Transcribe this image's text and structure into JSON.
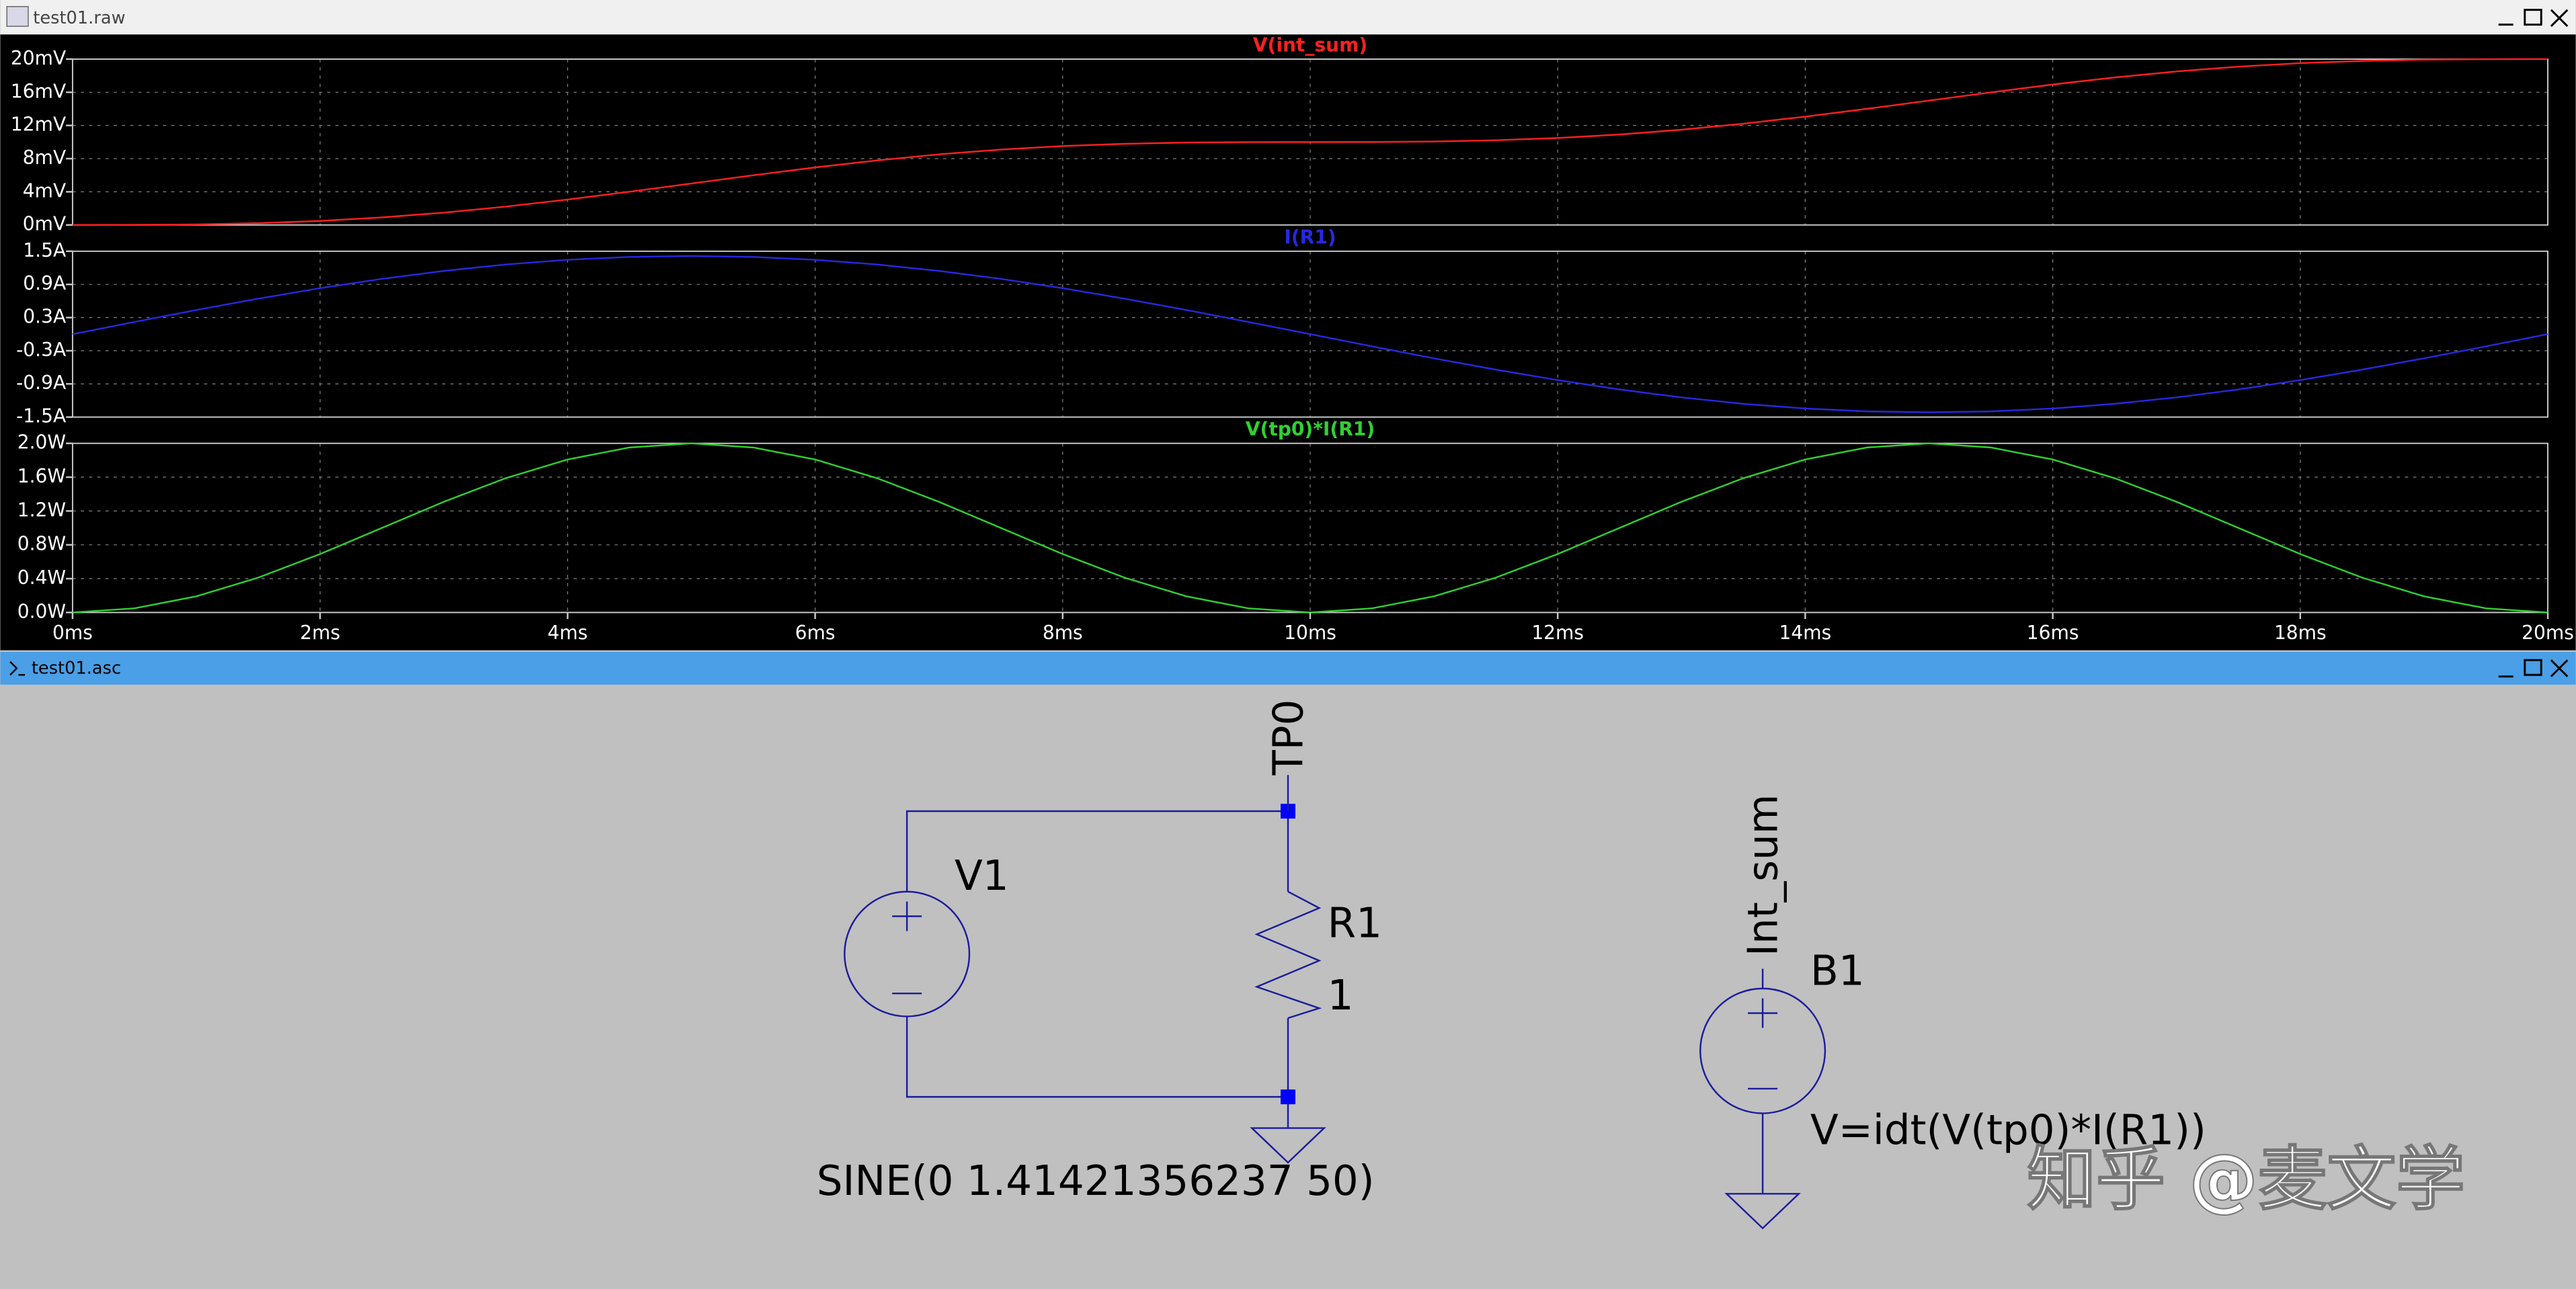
{
  "raw_window": {
    "title": "test01.raw"
  },
  "chart_data": [
    {
      "type": "line",
      "title": "V(int_sum)",
      "color": "#ff2020",
      "x": [
        0,
        0.5,
        1,
        1.5,
        2,
        2.5,
        3,
        3.5,
        4,
        4.5,
        5,
        5.5,
        6,
        6.5,
        7,
        7.5,
        8,
        8.5,
        9,
        9.5,
        10,
        10.5,
        11,
        11.5,
        12,
        12.5,
        13,
        13.5,
        14,
        14.5,
        15,
        15.5,
        16,
        16.5,
        17,
        17.5,
        18,
        18.5,
        19,
        19.5,
        20
      ],
      "values": [
        0,
        0.008,
        0.064,
        0.213,
        0.486,
        0.909,
        1.486,
        2.213,
        3.064,
        4.008,
        5,
        5.992,
        6.936,
        7.787,
        8.514,
        9.091,
        9.514,
        9.787,
        9.936,
        9.992,
        10,
        10.008,
        10.064,
        10.213,
        10.486,
        10.909,
        11.486,
        12.213,
        13.064,
        14.008,
        15,
        15.992,
        16.936,
        17.787,
        18.514,
        19.091,
        19.514,
        19.787,
        19.936,
        19.992,
        20
      ],
      "xlim": [
        0,
        20
      ],
      "ylim": [
        0,
        20
      ],
      "yticks": [
        {
          "value": 0,
          "label": "0mV"
        },
        {
          "value": 4,
          "label": "4mV"
        },
        {
          "value": 8,
          "label": "8mV"
        },
        {
          "value": 12,
          "label": "12mV"
        },
        {
          "value": 16,
          "label": "16mV"
        },
        {
          "value": 20,
          "label": "20mV"
        }
      ],
      "grid": true
    },
    {
      "type": "line",
      "title": "I(R1)",
      "color": "#2828e0",
      "x": [
        0,
        0.5,
        1,
        1.5,
        2,
        2.5,
        3,
        3.5,
        4,
        4.5,
        5,
        5.5,
        6,
        6.5,
        7,
        7.5,
        8,
        8.5,
        9,
        9.5,
        10,
        10.5,
        11,
        11.5,
        12,
        12.5,
        13,
        13.5,
        14,
        14.5,
        15,
        15.5,
        16,
        16.5,
        17,
        17.5,
        18,
        18.5,
        19,
        19.5,
        20
      ],
      "values": [
        0,
        0.221,
        0.437,
        0.642,
        0.831,
        1.0,
        1.144,
        1.26,
        1.345,
        1.397,
        1.414,
        1.397,
        1.345,
        1.26,
        1.144,
        1.0,
        0.831,
        0.642,
        0.437,
        0.221,
        0,
        -0.221,
        -0.437,
        -0.642,
        -0.831,
        -1.0,
        -1.144,
        -1.26,
        -1.345,
        -1.397,
        -1.414,
        -1.397,
        -1.345,
        -1.26,
        -1.144,
        -1.0,
        -0.831,
        -0.642,
        -0.437,
        -0.221,
        0
      ],
      "xlim": [
        0,
        20
      ],
      "ylim": [
        -1.5,
        1.5
      ],
      "yticks": [
        {
          "value": -1.5,
          "label": "-1.5A"
        },
        {
          "value": -0.9,
          "label": "-0.9A"
        },
        {
          "value": -0.3,
          "label": "-0.3A"
        },
        {
          "value": 0.3,
          "label": "0.3A"
        },
        {
          "value": 0.9,
          "label": "0.9A"
        },
        {
          "value": 1.5,
          "label": "1.5A"
        }
      ],
      "grid": true
    },
    {
      "type": "line",
      "title": "V(tp0)*I(R1)",
      "color": "#30d030",
      "x": [
        0,
        0.5,
        1,
        1.5,
        2,
        2.5,
        3,
        3.5,
        4,
        4.5,
        5,
        5.5,
        6,
        6.5,
        7,
        7.5,
        8,
        8.5,
        9,
        9.5,
        10,
        10.5,
        11,
        11.5,
        12,
        12.5,
        13,
        13.5,
        14,
        14.5,
        15,
        15.5,
        16,
        16.5,
        17,
        17.5,
        18,
        18.5,
        19,
        19.5,
        20
      ],
      "values": [
        0,
        0.049,
        0.191,
        0.412,
        0.691,
        1.0,
        1.309,
        1.588,
        1.809,
        1.951,
        2,
        1.951,
        1.809,
        1.588,
        1.309,
        1.0,
        0.691,
        0.412,
        0.191,
        0.049,
        0,
        0.049,
        0.191,
        0.412,
        0.691,
        1.0,
        1.309,
        1.588,
        1.809,
        1.951,
        2,
        1.951,
        1.809,
        1.588,
        1.309,
        1.0,
        0.691,
        0.412,
        0.191,
        0.049,
        0
      ],
      "xlim": [
        0,
        20
      ],
      "ylim": [
        0,
        2
      ],
      "yticks": [
        {
          "value": 0,
          "label": "0.0W"
        },
        {
          "value": 0.4,
          "label": "0.4W"
        },
        {
          "value": 0.8,
          "label": "0.8W"
        },
        {
          "value": 1.2,
          "label": "1.2W"
        },
        {
          "value": 1.6,
          "label": "1.6W"
        },
        {
          "value": 2,
          "label": "2.0W"
        }
      ],
      "xticks": [
        {
          "value": 0,
          "label": "0ms"
        },
        {
          "value": 2,
          "label": "2ms"
        },
        {
          "value": 4,
          "label": "4ms"
        },
        {
          "value": 6,
          "label": "6ms"
        },
        {
          "value": 8,
          "label": "8ms"
        },
        {
          "value": 10,
          "label": "10ms"
        },
        {
          "value": 12,
          "label": "12ms"
        },
        {
          "value": 14,
          "label": "14ms"
        },
        {
          "value": 16,
          "label": "16ms"
        },
        {
          "value": 18,
          "label": "18ms"
        },
        {
          "value": 20,
          "label": "20ms"
        }
      ],
      "grid": true
    }
  ],
  "schematic_window": {
    "title": "test01.asc",
    "labels": {
      "tp0": "TP0",
      "v1": "V1",
      "r1": "R1",
      "r1_value": "1",
      "v1_value": "SINE(0 1.41421356237 50)",
      "int_sum": "Int_sum",
      "b1": "B1",
      "b1_value": "V=idt(V(tp0)*I(R1))"
    }
  },
  "watermark": "知乎 @麦文学"
}
